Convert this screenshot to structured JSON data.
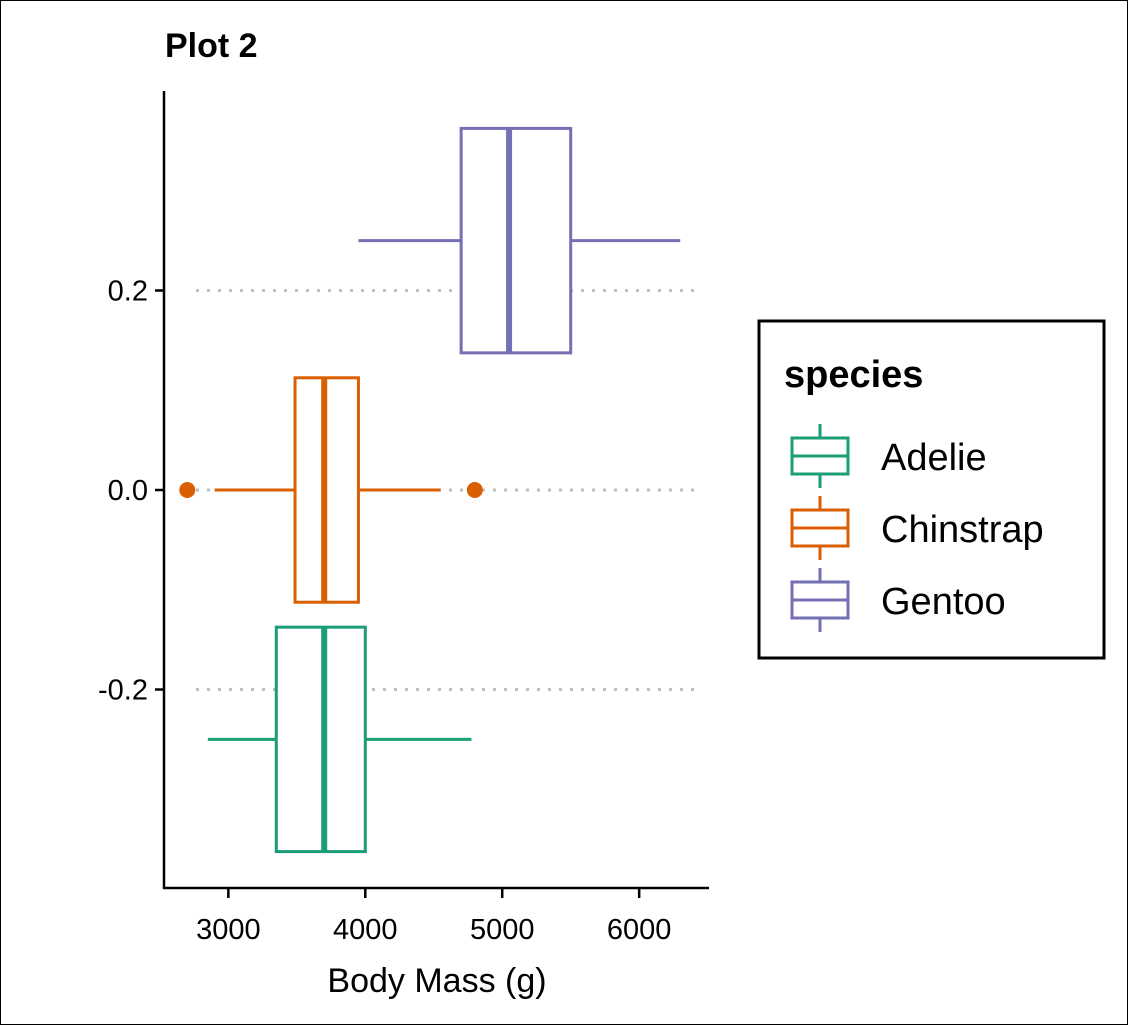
{
  "chart_data": {
    "type": "boxplot",
    "title": "Plot 2",
    "xlabel": "Body Mass (g)",
    "ylabel": "",
    "orientation": "horizontal",
    "xlim": [
      2530,
      6510
    ],
    "ylim": [
      -0.4,
      0.4
    ],
    "x_ticks": [
      3000,
      4000,
      5000,
      6000
    ],
    "x_tick_labels": [
      "3000",
      "4000",
      "5000",
      "6000"
    ],
    "y_ticks": [
      0.2,
      0.0,
      -0.2
    ],
    "y_tick_labels": [
      "0.2",
      "0.0",
      "-0.2"
    ],
    "grid": {
      "major_y": true,
      "style": "dotted",
      "color": "#bfbfbf"
    },
    "legend": {
      "title": "species",
      "placement": "right"
    },
    "series": [
      {
        "name": "Adelie",
        "color": "#1b9e77",
        "position": -0.25,
        "half_height": 0.1125,
        "whisker_low": 2850,
        "q1": 3350,
        "median": 3700,
        "q3": 4000,
        "whisker_high": 4775,
        "outliers": []
      },
      {
        "name": "Chinstrap",
        "color": "#d95f02",
        "position": 0.0,
        "half_height": 0.1125,
        "whisker_low": 2900,
        "q1": 3487,
        "median": 3700,
        "q3": 3950,
        "whisker_high": 4550,
        "outliers": [
          2700,
          4800
        ]
      },
      {
        "name": "Gentoo",
        "color": "#7570b3",
        "position": 0.25,
        "half_height": 0.1125,
        "whisker_low": 3950,
        "q1": 4700,
        "median": 5050,
        "q3": 5500,
        "whisker_high": 6300,
        "outliers": []
      }
    ]
  }
}
